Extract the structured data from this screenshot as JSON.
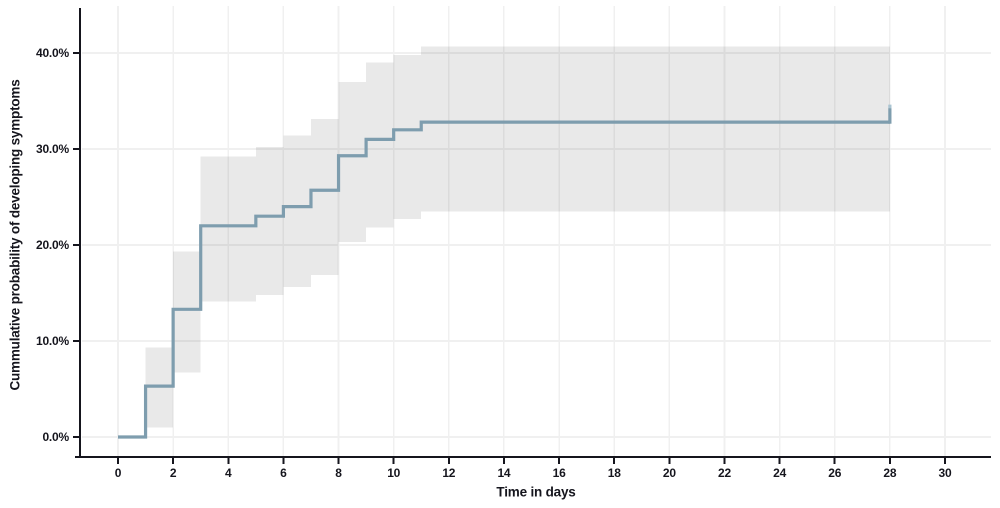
{
  "chart_data": {
    "type": "line",
    "subtype": "kaplan-meier-step-with-confidence-band",
    "title": "",
    "xlabel": "Time in days",
    "ylabel": "Cummulative probability of developing symptoms",
    "grid": "on",
    "legend": "none",
    "xlim": [
      -1.4,
      31.6
    ],
    "ylim": [
      -2.2,
      45.0
    ],
    "x_ticks": [
      {
        "value": 0,
        "label": "0"
      },
      {
        "value": 2,
        "label": "2"
      },
      {
        "value": 4,
        "label": "4"
      },
      {
        "value": 6,
        "label": "6"
      },
      {
        "value": 8,
        "label": "8"
      },
      {
        "value": 10,
        "label": "10"
      },
      {
        "value": 12,
        "label": "12"
      },
      {
        "value": 14,
        "label": "14"
      },
      {
        "value": 16,
        "label": "16"
      },
      {
        "value": 18,
        "label": "18"
      },
      {
        "value": 20,
        "label": "20"
      },
      {
        "value": 22,
        "label": "22"
      },
      {
        "value": 24,
        "label": "24"
      },
      {
        "value": 26,
        "label": "26"
      },
      {
        "value": 28,
        "label": "28"
      },
      {
        "value": 30,
        "label": "30"
      }
    ],
    "y_ticks": [
      {
        "value": 0,
        "label": "0.0%"
      },
      {
        "value": 10,
        "label": "10.0%"
      },
      {
        "value": 20,
        "label": "20.0%"
      },
      {
        "value": 30,
        "label": "30.0%"
      },
      {
        "value": 40,
        "label": "40.0%"
      }
    ],
    "series": [
      {
        "name": "cumulative-probability-of-developing-symptoms",
        "steps": [
          {
            "day": 0,
            "percent": 0.0
          },
          {
            "day": 1,
            "percent": 5.3
          },
          {
            "day": 2,
            "percent": 13.3
          },
          {
            "day": 3,
            "percent": 22.0
          },
          {
            "day": 5,
            "percent": 23.0
          },
          {
            "day": 6,
            "percent": 24.0
          },
          {
            "day": 7,
            "percent": 25.7
          },
          {
            "day": 8,
            "percent": 29.3
          },
          {
            "day": 9,
            "percent": 31.0
          },
          {
            "day": 10,
            "percent": 32.0
          },
          {
            "day": 11,
            "percent": 32.8
          }
        ],
        "end_day": 28,
        "censor_marks": [
          {
            "day": 28,
            "percent": 32.8
          }
        ]
      }
    ],
    "confidence_band": {
      "intervals": [
        {
          "from_day": 1,
          "to_day": 2,
          "lower": 1.0,
          "upper": 9.3
        },
        {
          "from_day": 2,
          "to_day": 3,
          "lower": 6.7,
          "upper": 19.3
        },
        {
          "from_day": 3,
          "to_day": 5,
          "lower": 14.1,
          "upper": 29.2
        },
        {
          "from_day": 5,
          "to_day": 6,
          "lower": 14.8,
          "upper": 30.2
        },
        {
          "from_day": 6,
          "to_day": 7,
          "lower": 15.6,
          "upper": 31.4
        },
        {
          "from_day": 7,
          "to_day": 8,
          "lower": 16.9,
          "upper": 33.1
        },
        {
          "from_day": 8,
          "to_day": 9,
          "lower": 20.3,
          "upper": 37.0
        },
        {
          "from_day": 9,
          "to_day": 10,
          "lower": 21.8,
          "upper": 39.0
        },
        {
          "from_day": 10,
          "to_day": 11,
          "lower": 22.7,
          "upper": 39.8
        },
        {
          "from_day": 11,
          "to_day": 28,
          "lower": 23.5,
          "upper": 40.7
        }
      ]
    },
    "colors": {
      "line": "#7e9dae",
      "censor_tip": "#aac4d1",
      "band": "rgba(0,0,0,0.085)",
      "gridline": "#f0f0f0",
      "axis": "#15151d",
      "text": "#15151d",
      "background": "#ffffff"
    }
  }
}
